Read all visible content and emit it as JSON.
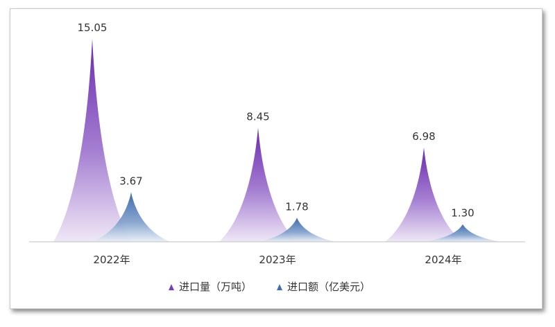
{
  "chart_data": {
    "type": "bar",
    "categories": [
      "2022年",
      "2023年",
      "2024年"
    ],
    "series": [
      {
        "name": "进口量（万吨）",
        "values": [
          15.05,
          8.45,
          6.98
        ],
        "color": "#7a3fb8"
      },
      {
        "name": "进口额（亿美元）",
        "values": [
          3.67,
          1.78,
          1.3
        ],
        "color": "#3f6fb0"
      }
    ],
    "value_labels": [
      [
        "15.05",
        "8.45",
        "6.98"
      ],
      [
        "3.67",
        "1.78",
        "1.30"
      ]
    ],
    "ylim": [
      0,
      15.05
    ],
    "grid": false,
    "legend": "bottom",
    "mark_shape": "cone"
  }
}
